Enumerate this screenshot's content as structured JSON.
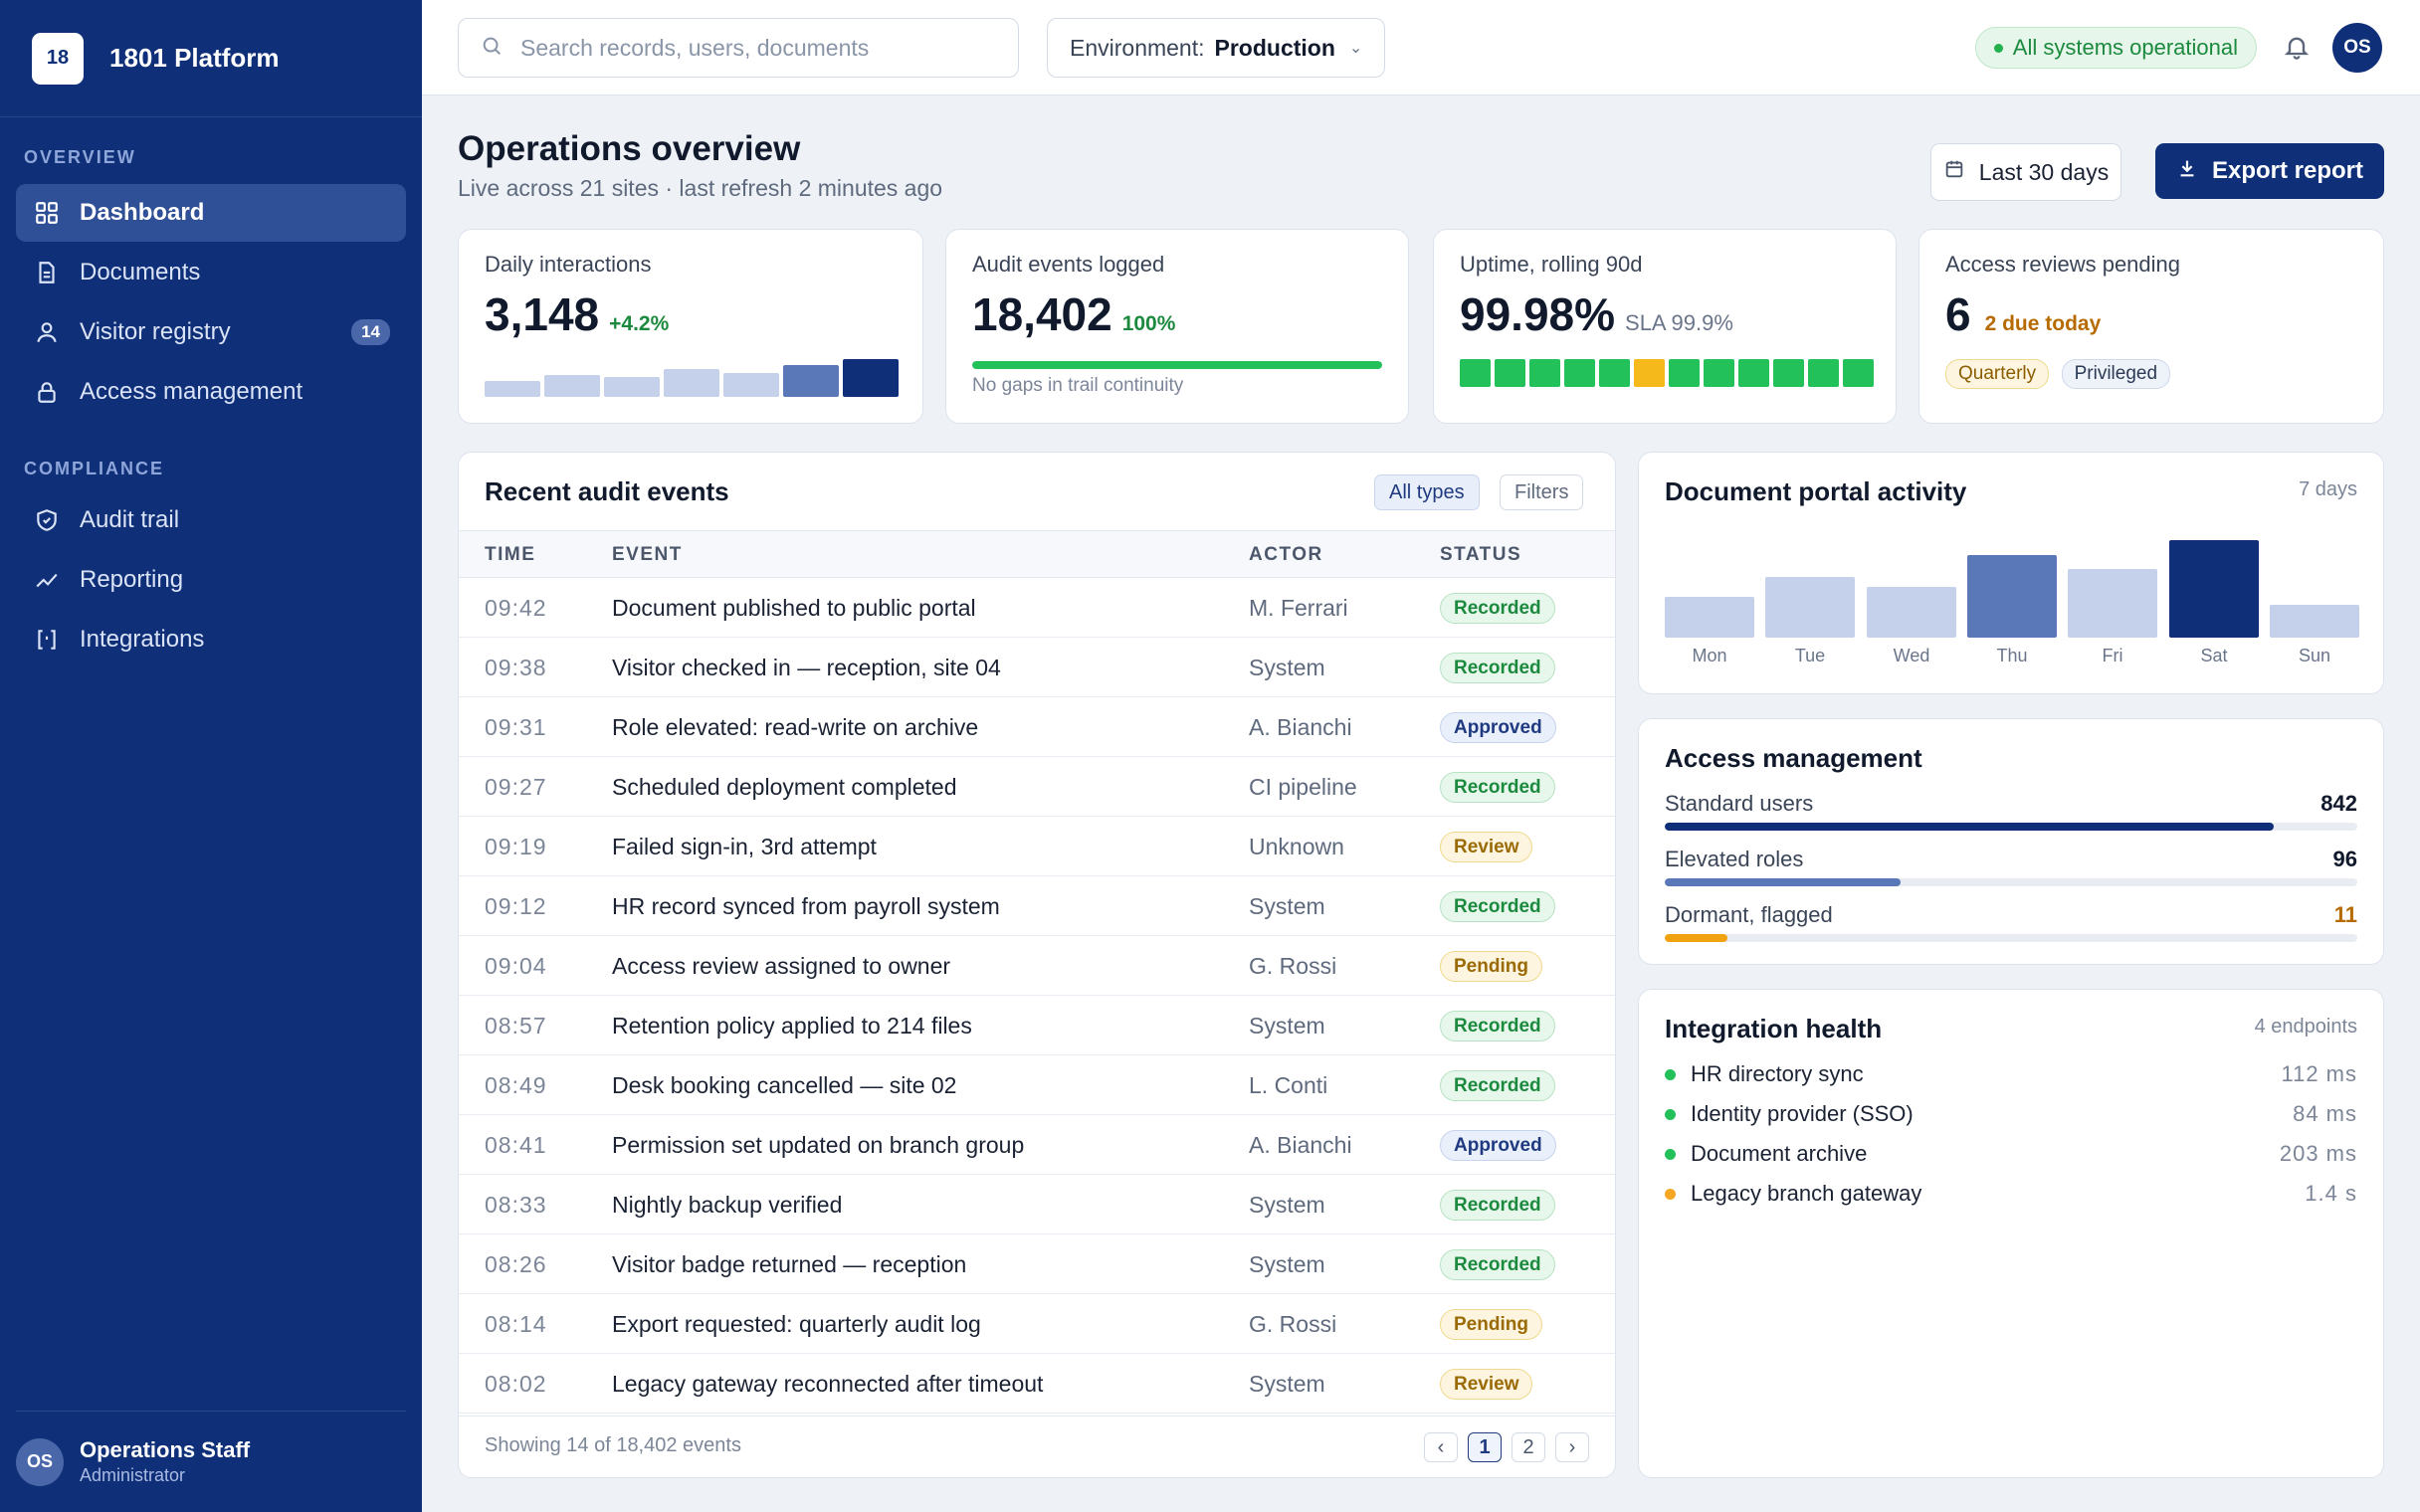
{
  "brand": {
    "logo": "18",
    "name": "1801 Platform"
  },
  "sidebar": {
    "sections": [
      {
        "label": "OVERVIEW"
      },
      {
        "label": "COMPLIANCE"
      }
    ],
    "items": [
      {
        "label": "Dashboard",
        "icon": "grid-icon",
        "active": true
      },
      {
        "label": "Documents",
        "icon": "document-icon"
      },
      {
        "label": "Visitor registry",
        "icon": "user-icon",
        "badge": "14"
      },
      {
        "label": "Access management",
        "icon": "lock-icon"
      },
      {
        "label": "Audit trail",
        "icon": "shield-icon"
      },
      {
        "label": "Reporting",
        "icon": "trend-icon"
      },
      {
        "label": "Integrations",
        "icon": "brackets-icon"
      }
    ],
    "user": {
      "initials": "OS",
      "name": "Operations Staff",
      "role": "Administrator"
    }
  },
  "topbar": {
    "search_placeholder": "Search records, users, documents",
    "env_label": "Environment:",
    "env_value": "Production",
    "status": "All systems operational",
    "avatar": "OS"
  },
  "header": {
    "title": "Operations overview",
    "subtitle": "Live across 21 sites · last refresh 2 minutes ago",
    "date_button": "Last 30 days",
    "export_button": "Export report"
  },
  "kpis": {
    "interactions": {
      "label": "Daily interactions",
      "value": "3,148",
      "delta": "+4.2%",
      "spark": [
        0.25,
        0.35,
        0.32,
        0.45,
        0.38,
        0.52,
        0.62
      ]
    },
    "audit": {
      "label": "Audit events logged",
      "value": "18,402",
      "delta": "100%",
      "progress": 1.0,
      "foot": "No gaps in trail continuity"
    },
    "uptime": {
      "label": "Uptime, rolling 90d",
      "value": "99.98%",
      "sla": "SLA 99.9%",
      "blocks": [
        "ok",
        "ok",
        "ok",
        "ok",
        "ok",
        "warn",
        "ok",
        "ok",
        "ok",
        "ok",
        "ok",
        "ok"
      ]
    },
    "reviews": {
      "label": "Access reviews pending",
      "value": "6",
      "due": "2 due today",
      "tags": [
        "Quarterly",
        "Privileged"
      ]
    }
  },
  "audit_table": {
    "title": "Recent audit events",
    "chip_all": "All types",
    "chip_filters": "Filters",
    "columns": {
      "time": "TIME",
      "event": "EVENT",
      "actor": "ACTOR",
      "status": "STATUS"
    },
    "rows": [
      {
        "time": "09:42",
        "event": "Document published to public portal",
        "actor": "M. Ferrari",
        "status": "Recorded"
      },
      {
        "time": "09:38",
        "event": "Visitor checked in — reception, site 04",
        "actor": "System",
        "status": "Recorded"
      },
      {
        "time": "09:31",
        "event": "Role elevated: read-write on archive",
        "actor": "A. Bianchi",
        "status": "Approved"
      },
      {
        "time": "09:27",
        "event": "Scheduled deployment completed",
        "actor": "CI pipeline",
        "status": "Recorded"
      },
      {
        "time": "09:19",
        "event": "Failed sign-in, 3rd attempt",
        "actor": "Unknown",
        "status": "Review"
      },
      {
        "time": "09:12",
        "event": "HR record synced from payroll system",
        "actor": "System",
        "status": "Recorded"
      },
      {
        "time": "09:04",
        "event": "Access review assigned to owner",
        "actor": "G. Rossi",
        "status": "Pending"
      },
      {
        "time": "08:57",
        "event": "Retention policy applied to 214 files",
        "actor": "System",
        "status": "Recorded"
      },
      {
        "time": "08:49",
        "event": "Desk booking cancelled — site 02",
        "actor": "L. Conti",
        "status": "Recorded"
      },
      {
        "time": "08:41",
        "event": "Permission set updated on branch group",
        "actor": "A. Bianchi",
        "status": "Approved"
      },
      {
        "time": "08:33",
        "event": "Nightly backup verified",
        "actor": "System",
        "status": "Recorded"
      },
      {
        "time": "08:26",
        "event": "Visitor badge returned — reception",
        "actor": "System",
        "status": "Recorded"
      },
      {
        "time": "08:14",
        "event": "Export requested: quarterly audit log",
        "actor": "G. Rossi",
        "status": "Pending"
      },
      {
        "time": "08:02",
        "event": "Legacy gateway reconnected after timeout",
        "actor": "System",
        "status": "Review"
      }
    ],
    "showing": "Showing 14 of 18,402 events",
    "pager": {
      "prev": "‹",
      "pages": [
        "1",
        "2"
      ],
      "next": "›"
    }
  },
  "portal": {
    "title": "Document portal activity",
    "meta": "7 days",
    "days": [
      "Mon",
      "Tue",
      "Wed",
      "Thu",
      "Fri",
      "Sat",
      "Sun"
    ],
    "values": [
      0.42,
      0.62,
      0.52,
      0.85,
      0.7,
      1.0,
      0.34
    ],
    "highlight": [
      false,
      false,
      false,
      true,
      false,
      true,
      false
    ]
  },
  "access": {
    "title": "Access management",
    "rows": [
      {
        "name": "Standard users",
        "value": "842",
        "fraction": 0.88,
        "color": "#0f2f78"
      },
      {
        "name": "Elevated roles",
        "value": "96",
        "fraction": 0.34,
        "color": "#5a78b8"
      },
      {
        "name": "Dormant, flagged",
        "value": "11",
        "fraction": 0.09,
        "color": "#f0a20f"
      }
    ]
  },
  "integrations": {
    "title": "Integration health",
    "meta": "4 endpoints",
    "rows": [
      {
        "name": "HR directory sync",
        "latency": "112 ms",
        "state": "ok"
      },
      {
        "name": "Identity provider (SSO)",
        "latency": "84 ms",
        "state": "ok"
      },
      {
        "name": "Document archive",
        "latency": "203 ms",
        "state": "ok"
      },
      {
        "name": "Legacy branch gateway",
        "latency": "1.4 s",
        "state": "warn"
      }
    ]
  },
  "colors": {
    "brand": "#0f2f78",
    "ok": "#22c15a",
    "warn": "#f5b91b",
    "accent": "#5a78b8"
  }
}
